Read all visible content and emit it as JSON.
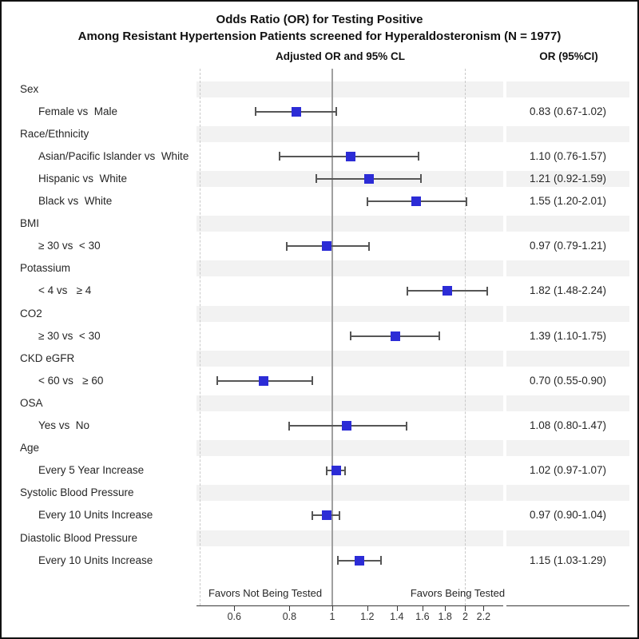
{
  "chart_data": {
    "type": "forest",
    "x_scale": "log",
    "title_lines": [
      "Odds Ratio (OR) for Testing Positive",
      "Among Resistant Hypertension Patients screened for Hyperaldosteronism (N = 1977)"
    ],
    "column_headers": {
      "plot": "Adjusted OR and 95% CL",
      "values": "OR (95%CI)"
    },
    "groups": [
      {
        "category": "Sex",
        "items": [
          {
            "label": "Female vs  Male",
            "or": 0.83,
            "ci_low": 0.67,
            "ci_high": 1.02,
            "display": "0.83 (0.67-1.02)"
          }
        ]
      },
      {
        "category": "Race/Ethnicity",
        "items": [
          {
            "label": "Asian/Pacific Islander vs  White",
            "or": 1.1,
            "ci_low": 0.76,
            "ci_high": 1.57,
            "display": "1.10 (0.76-1.57)"
          },
          {
            "label": "Hispanic vs  White",
            "or": 1.21,
            "ci_low": 0.92,
            "ci_high": 1.59,
            "display": "1.21 (0.92-1.59)"
          },
          {
            "label": "Black vs  White",
            "or": 1.55,
            "ci_low": 1.2,
            "ci_high": 2.01,
            "display": "1.55 (1.20-2.01)"
          }
        ]
      },
      {
        "category": "BMI",
        "items": [
          {
            "label": "≥ 30 vs  < 30",
            "or": 0.97,
            "ci_low": 0.79,
            "ci_high": 1.21,
            "display": "0.97 (0.79-1.21)"
          }
        ]
      },
      {
        "category": "Potassium",
        "items": [
          {
            "label": "< 4 vs   ≥ 4",
            "or": 1.82,
            "ci_low": 1.48,
            "ci_high": 2.24,
            "display": "1.82 (1.48-2.24)"
          }
        ]
      },
      {
        "category": "CO2",
        "items": [
          {
            "label": "≥ 30 vs  < 30",
            "or": 1.39,
            "ci_low": 1.1,
            "ci_high": 1.75,
            "display": "1.39 (1.10-1.75)"
          }
        ]
      },
      {
        "category": "CKD eGFR",
        "items": [
          {
            "label": "< 60 vs   ≥ 60",
            "or": 0.7,
            "ci_low": 0.55,
            "ci_high": 0.9,
            "display": "0.70 (0.55-0.90)"
          }
        ]
      },
      {
        "category": "OSA",
        "items": [
          {
            "label": "Yes vs  No",
            "or": 1.08,
            "ci_low": 0.8,
            "ci_high": 1.47,
            "display": "1.08 (0.80-1.47)"
          }
        ]
      },
      {
        "category": "Age",
        "items": [
          {
            "label": "Every 5 Year Increase",
            "or": 1.02,
            "ci_low": 0.97,
            "ci_high": 1.07,
            "display": "1.02 (0.97-1.07)"
          }
        ]
      },
      {
        "category": "Systolic Blood Pressure",
        "items": [
          {
            "label": "Every 10 Units Increase",
            "or": 0.97,
            "ci_low": 0.9,
            "ci_high": 1.04,
            "display": "0.97 (0.90-1.04)"
          }
        ]
      },
      {
        "category": "Diastolic Blood Pressure",
        "items": [
          {
            "label": "Every 10 Units Increase",
            "or": 1.15,
            "ci_low": 1.03,
            "ci_high": 1.29,
            "display": "1.15 (1.03-1.29)"
          }
        ]
      }
    ],
    "x_ticks": [
      {
        "value": 0.6,
        "label": "0.6"
      },
      {
        "value": 0.8,
        "label": "0.8"
      },
      {
        "value": 1,
        "label": "1"
      },
      {
        "value": 1.2,
        "label": "1.2"
      },
      {
        "value": 1.4,
        "label": "1.4"
      },
      {
        "value": 1.6,
        "label": "1.6"
      },
      {
        "value": 1.8,
        "label": "1.8"
      },
      {
        "value": 2,
        "label": "2"
      },
      {
        "value": 2.2,
        "label": "2.2"
      }
    ],
    "reference_line": 1.0,
    "dashed_guides": [
      0.5,
      2.0
    ],
    "x_range": [
      0.5,
      2.45
    ],
    "footer": {
      "left": "Favors Not Being Tested",
      "right": "Favors Being Tested"
    },
    "colors": {
      "marker": "#2c2cd6",
      "error_bar": "#565656",
      "band": "#f2f2f2",
      "reference_line": "#a0a0a0",
      "dashed_line": "#c9c9c9",
      "axis": "#3a3a3a",
      "text": "#262626"
    }
  }
}
